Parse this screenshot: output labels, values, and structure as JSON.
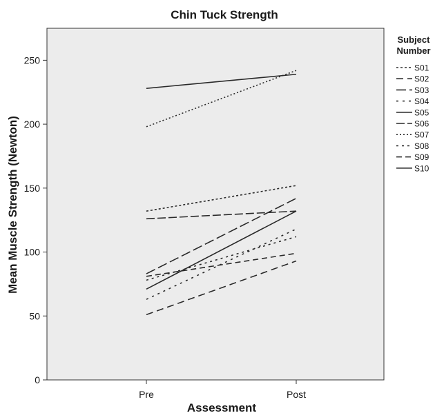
{
  "chart_data": {
    "type": "line",
    "title": "Chin Tuck Strength",
    "xlabel": "Assessment",
    "ylabel": "Mean Muscle Strength (Newton)",
    "categories": [
      "Pre",
      "Post"
    ],
    "ylim": [
      0,
      275
    ],
    "yticks": [
      0,
      50,
      100,
      150,
      200,
      250
    ],
    "grid": false,
    "background_color": "#ececec",
    "line_color": "#2a2a2a",
    "legend": {
      "title_lines": [
        "Subject",
        "Number"
      ],
      "position": "right"
    },
    "series": [
      {
        "name": "S01",
        "values": [
          132,
          152
        ],
        "dash": "3,3"
      },
      {
        "name": "S02",
        "values": [
          51,
          93
        ],
        "dash": "10,6"
      },
      {
        "name": "S03",
        "values": [
          83,
          142
        ],
        "dash": "14,5"
      },
      {
        "name": "S04",
        "values": [
          63,
          118
        ],
        "dash": "3,6"
      },
      {
        "name": "S05",
        "values": [
          228,
          239
        ],
        "dash": ""
      },
      {
        "name": "S06",
        "values": [
          126,
          132
        ],
        "dash": "12,4"
      },
      {
        "name": "S07",
        "values": [
          198,
          242
        ],
        "dash": "2,3"
      },
      {
        "name": "S08",
        "values": [
          78,
          112
        ],
        "dash": "3,5"
      },
      {
        "name": "S09",
        "values": [
          81,
          99
        ],
        "dash": "8,5"
      },
      {
        "name": "S10",
        "values": [
          71,
          132
        ],
        "dash": ""
      }
    ]
  }
}
